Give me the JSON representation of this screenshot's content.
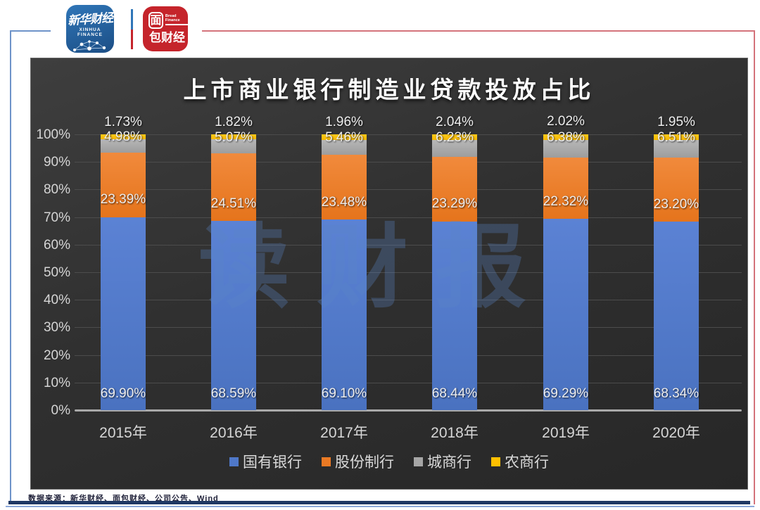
{
  "header": {
    "xinhua_logo": {
      "script": "新华财经",
      "sub": "XINHUA FINANCE"
    },
    "bread_logo": {
      "box_char": "面",
      "rest": "包财经",
      "sub": "Bread Finance"
    }
  },
  "watermark": "读财报",
  "chart_data": {
    "type": "bar",
    "stacked": true,
    "title": "上市商业银行制造业贷款投放占比",
    "categories": [
      "2015年",
      "2016年",
      "2017年",
      "2018年",
      "2019年",
      "2020年"
    ],
    "series": [
      {
        "name": "国有银行",
        "color": "#4f78c8",
        "values": [
          69.9,
          68.59,
          69.1,
          68.44,
          69.29,
          68.34
        ]
      },
      {
        "name": "股份制行",
        "color": "#ea7a24",
        "values": [
          23.39,
          24.51,
          23.48,
          23.29,
          22.32,
          23.2
        ]
      },
      {
        "name": "城商行",
        "color": "#a6a6a6",
        "values": [
          4.98,
          5.07,
          5.46,
          6.23,
          6.38,
          6.51
        ]
      },
      {
        "name": "农商行",
        "color": "#ffc000",
        "values": [
          1.73,
          1.82,
          1.96,
          2.04,
          2.02,
          1.95
        ]
      }
    ],
    "y_ticks": [
      "100%",
      "90%",
      "80%",
      "70%",
      "60%",
      "50%",
      "40%",
      "30%",
      "20%",
      "10%",
      "0%"
    ],
    "ylim": [
      0,
      100
    ],
    "grid": true,
    "legend_position": "bottom",
    "label_format": "0.00%"
  },
  "footer": {
    "source": "数据来源：新华财经、面包财经、公司公告、Wind"
  }
}
